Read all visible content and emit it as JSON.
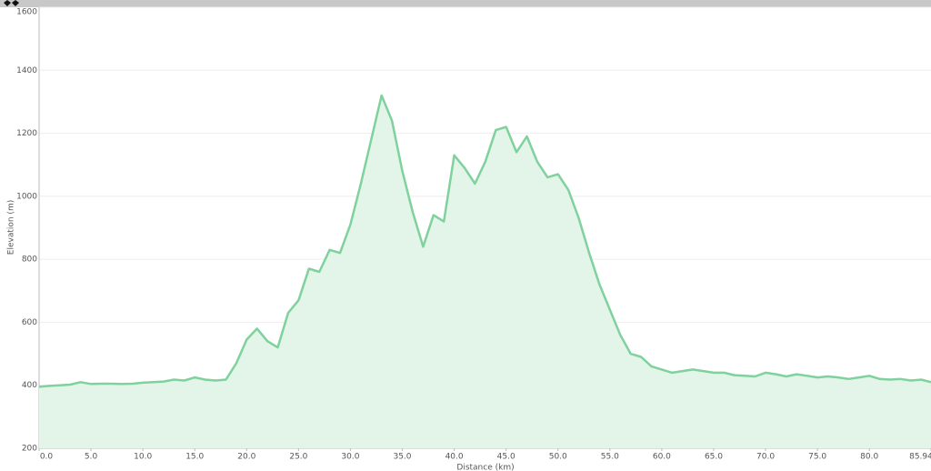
{
  "chart_data": {
    "type": "area",
    "x_label": "Distance (km)",
    "y_label": "Elevation (m)",
    "x": [
      0,
      1,
      2,
      3,
      4,
      5,
      6,
      7,
      8,
      9,
      10,
      11,
      12,
      13,
      14,
      15,
      16,
      17,
      18,
      19,
      20,
      21,
      22,
      23,
      24,
      25,
      26,
      27,
      28,
      29,
      30,
      31,
      32,
      33,
      34,
      35,
      36,
      37,
      38,
      39,
      40,
      41,
      42,
      43,
      44,
      45,
      46,
      47,
      48,
      49,
      50,
      51,
      52,
      53,
      54,
      55,
      56,
      57,
      58,
      59,
      60,
      61,
      62,
      63,
      64,
      65,
      66,
      67,
      68,
      69,
      70,
      71,
      72,
      73,
      74,
      75,
      76,
      77,
      78,
      79,
      80,
      81,
      82,
      83,
      84,
      85,
      85.94
    ],
    "series": [
      {
        "name": "Elevation",
        "color": "#7fd19d",
        "values": [
          395,
          398,
          400,
          402,
          410,
          404,
          405,
          405,
          404,
          405,
          408,
          410,
          412,
          418,
          415,
          425,
          418,
          415,
          418,
          470,
          545,
          580,
          540,
          520,
          630,
          670,
          770,
          760,
          830,
          820,
          910,
          1040,
          1180,
          1320,
          1240,
          1080,
          950,
          840,
          940,
          920,
          1130,
          1090,
          1040,
          1110,
          1210,
          1220,
          1140,
          1190,
          1110,
          1060,
          1070,
          1020,
          930,
          820,
          720,
          640,
          560,
          500,
          490,
          460,
          450,
          440,
          445,
          450,
          445,
          440,
          440,
          432,
          430,
          428,
          440,
          435,
          428,
          435,
          430,
          425,
          428,
          425,
          420,
          425,
          430,
          420,
          418,
          420,
          415,
          418,
          410
        ]
      }
    ],
    "xlim": [
      0,
      85.94
    ],
    "xticks": [
      {
        "value": 0,
        "label": "0.0"
      },
      {
        "value": 5,
        "label": "5.0"
      },
      {
        "value": 10,
        "label": "10.0"
      },
      {
        "value": 15,
        "label": "15.0"
      },
      {
        "value": 20,
        "label": "20.0"
      },
      {
        "value": 25,
        "label": "25.0"
      },
      {
        "value": 30,
        "label": "30.0"
      },
      {
        "value": 35,
        "label": "35.0"
      },
      {
        "value": 40,
        "label": "40.0"
      },
      {
        "value": 45,
        "label": "45.0"
      },
      {
        "value": 50,
        "label": "50.0"
      },
      {
        "value": 55,
        "label": "55.0"
      },
      {
        "value": 60,
        "label": "60.0"
      },
      {
        "value": 65,
        "label": "65.0"
      },
      {
        "value": 70,
        "label": "70.0"
      },
      {
        "value": 75,
        "label": "75.0"
      },
      {
        "value": 80,
        "label": "80.0"
      },
      85.94
    ],
    "ylim": [
      200,
      1600
    ],
    "yticks": [
      200,
      400,
      600,
      800,
      1000,
      1200,
      1400,
      1600
    ],
    "grid": true
  }
}
